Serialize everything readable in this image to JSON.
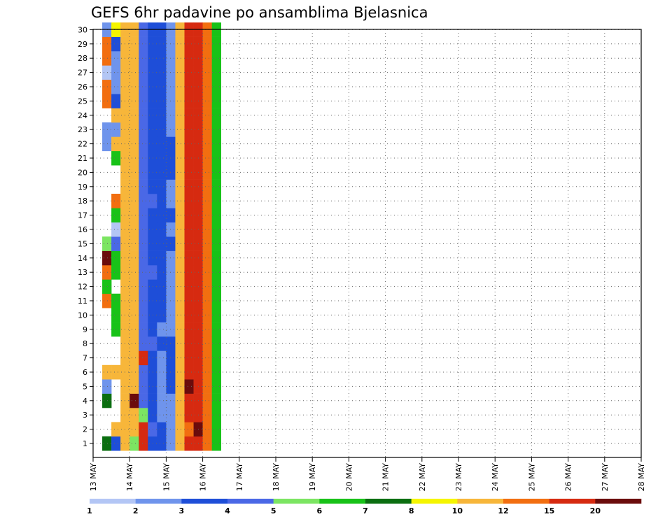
{
  "chart_data": {
    "type": "heatmap",
    "title": "GEFS 6hr padavine po ansamblima Bjelasnica",
    "xlabel": "",
    "ylabel": "",
    "x_tick_labels": [
      "13 MAY",
      "14 MAY",
      "15 MAY",
      "16 MAY",
      "17 MAY",
      "18 MAY",
      "19 MAY",
      "20 MAY",
      "21 MAY",
      "22 MAY",
      "23 MAY",
      "24 MAY",
      "25 MAY",
      "26 MAY",
      "27 MAY",
      "28 MAY"
    ],
    "y_tick_labels": [
      "1",
      "2",
      "3",
      "4",
      "5",
      "6",
      "7",
      "8",
      "9",
      "10",
      "11",
      "12",
      "13",
      "14",
      "15",
      "16",
      "17",
      "18",
      "19",
      "20",
      "21",
      "22",
      "23",
      "24",
      "25",
      "26",
      "27",
      "28",
      "29",
      "30"
    ],
    "steps_per_day": 4,
    "members": 30,
    "grid": true,
    "legend_placement": "bottom",
    "legend": {
      "labels": [
        "1",
        "2",
        "3",
        "4",
        "5",
        "6",
        "7",
        "8",
        "10",
        "12",
        "15",
        "20"
      ],
      "colors": [
        "#b3c6f5",
        "#6f94ec",
        "#1e4ed8",
        "#4a68e6",
        "#7ce562",
        "#18c218",
        "#0b6e10",
        "#f5f500",
        "#f7b63a",
        "#f26e10",
        "#d62a10",
        "#6b0c0c"
      ]
    },
    "cells": [
      [
        1,
        1,
        7
      ],
      [
        1,
        4,
        7
      ],
      [
        1,
        5,
        2
      ],
      [
        1,
        6,
        9
      ],
      [
        1,
        11,
        10
      ],
      [
        1,
        12,
        6
      ],
      [
        1,
        13,
        10
      ],
      [
        1,
        14,
        12
      ],
      [
        1,
        15,
        5
      ],
      [
        1,
        22,
        2
      ],
      [
        1,
        23,
        2
      ],
      [
        1,
        25,
        10
      ],
      [
        1,
        26,
        10
      ],
      [
        1,
        27,
        1
      ],
      [
        1,
        28,
        10
      ],
      [
        1,
        29,
        10
      ],
      [
        1,
        30,
        2
      ],
      [
        2,
        1,
        3
      ],
      [
        2,
        2,
        9
      ],
      [
        2,
        6,
        9
      ],
      [
        2,
        9,
        6
      ],
      [
        2,
        10,
        6
      ],
      [
        2,
        11,
        6
      ],
      [
        2,
        13,
        6
      ],
      [
        2,
        14,
        6
      ],
      [
        2,
        15,
        4
      ],
      [
        2,
        16,
        1
      ],
      [
        2,
        17,
        6
      ],
      [
        2,
        18,
        10
      ],
      [
        2,
        21,
        6
      ],
      [
        2,
        22,
        9
      ],
      [
        2,
        23,
        2
      ],
      [
        2,
        24,
        9
      ],
      [
        2,
        25,
        3
      ],
      [
        2,
        26,
        2
      ],
      [
        2,
        27,
        2
      ],
      [
        2,
        28,
        2
      ],
      [
        2,
        29,
        3
      ],
      [
        2,
        30,
        8
      ],
      [
        3,
        1,
        9
      ],
      [
        3,
        2,
        9
      ],
      [
        3,
        3,
        9
      ],
      [
        3,
        4,
        9
      ],
      [
        3,
        5,
        9
      ],
      [
        3,
        6,
        9
      ],
      [
        3,
        7,
        9
      ],
      [
        3,
        8,
        9
      ],
      [
        3,
        9,
        9
      ],
      [
        3,
        10,
        9
      ],
      [
        3,
        11,
        9
      ],
      [
        3,
        12,
        9
      ],
      [
        3,
        13,
        9
      ],
      [
        3,
        14,
        9
      ],
      [
        3,
        15,
        9
      ],
      [
        3,
        16,
        9
      ],
      [
        3,
        17,
        9
      ],
      [
        3,
        18,
        9
      ],
      [
        3,
        19,
        9
      ],
      [
        3,
        20,
        9
      ],
      [
        3,
        21,
        9
      ],
      [
        3,
        22,
        9
      ],
      [
        3,
        23,
        9
      ],
      [
        3,
        24,
        9
      ],
      [
        3,
        25,
        9
      ],
      [
        3,
        26,
        9
      ],
      [
        3,
        27,
        9
      ],
      [
        3,
        28,
        9
      ],
      [
        3,
        29,
        9
      ],
      [
        3,
        30,
        9
      ],
      [
        4,
        1,
        5
      ],
      [
        4,
        2,
        9
      ],
      [
        4,
        3,
        9
      ],
      [
        4,
        4,
        12
      ],
      [
        4,
        5,
        9
      ],
      [
        4,
        6,
        9
      ],
      [
        4,
        7,
        9
      ],
      [
        4,
        8,
        9
      ],
      [
        4,
        9,
        9
      ],
      [
        4,
        10,
        9
      ],
      [
        4,
        11,
        9
      ],
      [
        4,
        12,
        9
      ],
      [
        4,
        13,
        9
      ],
      [
        4,
        14,
        9
      ],
      [
        4,
        15,
        9
      ],
      [
        4,
        16,
        9
      ],
      [
        4,
        17,
        9
      ],
      [
        4,
        18,
        9
      ],
      [
        4,
        19,
        9
      ],
      [
        4,
        20,
        9
      ],
      [
        4,
        21,
        9
      ],
      [
        4,
        22,
        9
      ],
      [
        4,
        23,
        9
      ],
      [
        4,
        24,
        9
      ],
      [
        4,
        25,
        9
      ],
      [
        4,
        26,
        9
      ],
      [
        4,
        27,
        9
      ],
      [
        4,
        28,
        9
      ],
      [
        4,
        29,
        9
      ],
      [
        4,
        30,
        9
      ],
      [
        5,
        1,
        11
      ],
      [
        5,
        2,
        11
      ],
      [
        5,
        3,
        5
      ],
      [
        5,
        4,
        4
      ],
      [
        5,
        5,
        4
      ],
      [
        5,
        6,
        4
      ],
      [
        5,
        7,
        11
      ],
      [
        5,
        8,
        4
      ],
      [
        5,
        9,
        4
      ],
      [
        5,
        10,
        4
      ],
      [
        5,
        11,
        4
      ],
      [
        5,
        12,
        4
      ],
      [
        5,
        13,
        4
      ],
      [
        5,
        14,
        4
      ],
      [
        5,
        15,
        4
      ],
      [
        5,
        16,
        4
      ],
      [
        5,
        17,
        4
      ],
      [
        5,
        18,
        4
      ],
      [
        5,
        19,
        4
      ],
      [
        5,
        20,
        4
      ],
      [
        5,
        21,
        4
      ],
      [
        5,
        22,
        4
      ],
      [
        5,
        23,
        4
      ],
      [
        5,
        24,
        4
      ],
      [
        5,
        25,
        4
      ],
      [
        5,
        26,
        4
      ],
      [
        5,
        27,
        4
      ],
      [
        5,
        28,
        4
      ],
      [
        5,
        29,
        4
      ],
      [
        5,
        30,
        4
      ],
      [
        6,
        1,
        3
      ],
      [
        6,
        2,
        4
      ],
      [
        6,
        3,
        3
      ],
      [
        6,
        4,
        3
      ],
      [
        6,
        5,
        3
      ],
      [
        6,
        6,
        3
      ],
      [
        6,
        7,
        3
      ],
      [
        6,
        8,
        4
      ],
      [
        6,
        9,
        3
      ],
      [
        6,
        10,
        3
      ],
      [
        6,
        11,
        3
      ],
      [
        6,
        12,
        3
      ],
      [
        6,
        13,
        4
      ],
      [
        6,
        14,
        3
      ],
      [
        6,
        15,
        3
      ],
      [
        6,
        16,
        3
      ],
      [
        6,
        17,
        3
      ],
      [
        6,
        18,
        4
      ],
      [
        6,
        19,
        3
      ],
      [
        6,
        20,
        3
      ],
      [
        6,
        21,
        3
      ],
      [
        6,
        22,
        3
      ],
      [
        6,
        23,
        3
      ],
      [
        6,
        24,
        3
      ],
      [
        6,
        25,
        3
      ],
      [
        6,
        26,
        3
      ],
      [
        6,
        27,
        3
      ],
      [
        6,
        28,
        3
      ],
      [
        6,
        29,
        3
      ],
      [
        6,
        30,
        3
      ],
      [
        7,
        1,
        3
      ],
      [
        7,
        2,
        3
      ],
      [
        7,
        3,
        2
      ],
      [
        7,
        4,
        2
      ],
      [
        7,
        5,
        2
      ],
      [
        7,
        6,
        2
      ],
      [
        7,
        7,
        2
      ],
      [
        7,
        8,
        3
      ],
      [
        7,
        9,
        2
      ],
      [
        7,
        10,
        3
      ],
      [
        7,
        11,
        3
      ],
      [
        7,
        12,
        3
      ],
      [
        7,
        13,
        3
      ],
      [
        7,
        14,
        3
      ],
      [
        7,
        15,
        3
      ],
      [
        7,
        16,
        3
      ],
      [
        7,
        17,
        3
      ],
      [
        7,
        18,
        3
      ],
      [
        7,
        19,
        3
      ],
      [
        7,
        20,
        3
      ],
      [
        7,
        21,
        3
      ],
      [
        7,
        22,
        3
      ],
      [
        7,
        23,
        3
      ],
      [
        7,
        24,
        3
      ],
      [
        7,
        25,
        3
      ],
      [
        7,
        26,
        3
      ],
      [
        7,
        27,
        3
      ],
      [
        7,
        28,
        3
      ],
      [
        7,
        29,
        3
      ],
      [
        7,
        30,
        3
      ],
      [
        8,
        1,
        2
      ],
      [
        8,
        2,
        2
      ],
      [
        8,
        3,
        2
      ],
      [
        8,
        4,
        2
      ],
      [
        8,
        5,
        3
      ],
      [
        8,
        6,
        3
      ],
      [
        8,
        7,
        3
      ],
      [
        8,
        8,
        3
      ],
      [
        8,
        9,
        2
      ],
      [
        8,
        10,
        2
      ],
      [
        8,
        11,
        2
      ],
      [
        8,
        12,
        2
      ],
      [
        8,
        13,
        2
      ],
      [
        8,
        14,
        2
      ],
      [
        8,
        15,
        3
      ],
      [
        8,
        16,
        2
      ],
      [
        8,
        17,
        3
      ],
      [
        8,
        18,
        2
      ],
      [
        8,
        19,
        2
      ],
      [
        8,
        20,
        3
      ],
      [
        8,
        21,
        3
      ],
      [
        8,
        22,
        3
      ],
      [
        8,
        23,
        2
      ],
      [
        8,
        24,
        2
      ],
      [
        8,
        25,
        2
      ],
      [
        8,
        26,
        2
      ],
      [
        8,
        27,
        2
      ],
      [
        8,
        28,
        2
      ],
      [
        8,
        29,
        2
      ],
      [
        8,
        30,
        2
      ],
      [
        9,
        1,
        9
      ],
      [
        9,
        2,
        9
      ],
      [
        9,
        3,
        9
      ],
      [
        9,
        4,
        9
      ],
      [
        9,
        5,
        9
      ],
      [
        9,
        6,
        9
      ],
      [
        9,
        7,
        9
      ],
      [
        9,
        8,
        9
      ],
      [
        9,
        9,
        9
      ],
      [
        9,
        10,
        9
      ],
      [
        9,
        11,
        9
      ],
      [
        9,
        12,
        9
      ],
      [
        9,
        13,
        9
      ],
      [
        9,
        14,
        9
      ],
      [
        9,
        15,
        9
      ],
      [
        9,
        16,
        9
      ],
      [
        9,
        17,
        9
      ],
      [
        9,
        18,
        9
      ],
      [
        9,
        19,
        9
      ],
      [
        9,
        20,
        9
      ],
      [
        9,
        21,
        9
      ],
      [
        9,
        22,
        9
      ],
      [
        9,
        23,
        9
      ],
      [
        9,
        24,
        9
      ],
      [
        9,
        25,
        9
      ],
      [
        9,
        26,
        9
      ],
      [
        9,
        27,
        9
      ],
      [
        9,
        28,
        9
      ],
      [
        9,
        29,
        9
      ],
      [
        9,
        30,
        9
      ],
      [
        10,
        1,
        11
      ],
      [
        10,
        2,
        10
      ],
      [
        10,
        3,
        11
      ],
      [
        10,
        4,
        11
      ],
      [
        10,
        5,
        12
      ],
      [
        10,
        6,
        11
      ],
      [
        10,
        7,
        11
      ],
      [
        10,
        8,
        11
      ],
      [
        10,
        9,
        11
      ],
      [
        10,
        10,
        11
      ],
      [
        10,
        11,
        11
      ],
      [
        10,
        12,
        11
      ],
      [
        10,
        13,
        11
      ],
      [
        10,
        14,
        11
      ],
      [
        10,
        15,
        11
      ],
      [
        10,
        16,
        11
      ],
      [
        10,
        17,
        11
      ],
      [
        10,
        18,
        11
      ],
      [
        10,
        19,
        11
      ],
      [
        10,
        20,
        11
      ],
      [
        10,
        21,
        11
      ],
      [
        10,
        22,
        11
      ],
      [
        10,
        23,
        11
      ],
      [
        10,
        24,
        11
      ],
      [
        10,
        25,
        11
      ],
      [
        10,
        26,
        11
      ],
      [
        10,
        27,
        11
      ],
      [
        10,
        28,
        11
      ],
      [
        10,
        29,
        11
      ],
      [
        10,
        30,
        11
      ],
      [
        11,
        1,
        11
      ],
      [
        11,
        2,
        12
      ],
      [
        11,
        3,
        11
      ],
      [
        11,
        4,
        11
      ],
      [
        11,
        5,
        11
      ],
      [
        11,
        6,
        11
      ],
      [
        11,
        7,
        11
      ],
      [
        11,
        8,
        11
      ],
      [
        11,
        9,
        11
      ],
      [
        11,
        10,
        11
      ],
      [
        11,
        11,
        11
      ],
      [
        11,
        12,
        11
      ],
      [
        11,
        13,
        11
      ],
      [
        11,
        14,
        11
      ],
      [
        11,
        15,
        11
      ],
      [
        11,
        16,
        11
      ],
      [
        11,
        17,
        11
      ],
      [
        11,
        18,
        11
      ],
      [
        11,
        19,
        11
      ],
      [
        11,
        20,
        11
      ],
      [
        11,
        21,
        11
      ],
      [
        11,
        22,
        11
      ],
      [
        11,
        23,
        11
      ],
      [
        11,
        24,
        11
      ],
      [
        11,
        25,
        11
      ],
      [
        11,
        26,
        11
      ],
      [
        11,
        27,
        11
      ],
      [
        11,
        28,
        11
      ],
      [
        11,
        29,
        11
      ],
      [
        11,
        30,
        11
      ],
      [
        12,
        1,
        10
      ],
      [
        12,
        2,
        10
      ],
      [
        12,
        3,
        10
      ],
      [
        12,
        4,
        10
      ],
      [
        12,
        5,
        10
      ],
      [
        12,
        6,
        10
      ],
      [
        12,
        7,
        10
      ],
      [
        12,
        8,
        10
      ],
      [
        12,
        9,
        10
      ],
      [
        12,
        10,
        10
      ],
      [
        12,
        11,
        10
      ],
      [
        12,
        12,
        10
      ],
      [
        12,
        13,
        10
      ],
      [
        12,
        14,
        10
      ],
      [
        12,
        15,
        10
      ],
      [
        12,
        16,
        10
      ],
      [
        12,
        17,
        10
      ],
      [
        12,
        18,
        10
      ],
      [
        12,
        19,
        10
      ],
      [
        12,
        20,
        10
      ],
      [
        12,
        21,
        10
      ],
      [
        12,
        22,
        10
      ],
      [
        12,
        23,
        10
      ],
      [
        12,
        24,
        10
      ],
      [
        12,
        25,
        10
      ],
      [
        12,
        26,
        10
      ],
      [
        12,
        27,
        10
      ],
      [
        12,
        28,
        10
      ],
      [
        12,
        29,
        10
      ],
      [
        12,
        30,
        10
      ],
      [
        13,
        1,
        6
      ],
      [
        13,
        2,
        6
      ],
      [
        13,
        3,
        6
      ],
      [
        13,
        4,
        6
      ],
      [
        13,
        5,
        6
      ],
      [
        13,
        6,
        6
      ],
      [
        13,
        7,
        6
      ],
      [
        13,
        8,
        6
      ],
      [
        13,
        9,
        6
      ],
      [
        13,
        10,
        6
      ],
      [
        13,
        11,
        6
      ],
      [
        13,
        12,
        6
      ],
      [
        13,
        13,
        6
      ],
      [
        13,
        14,
        6
      ],
      [
        13,
        15,
        6
      ],
      [
        13,
        16,
        6
      ],
      [
        13,
        17,
        6
      ],
      [
        13,
        18,
        6
      ],
      [
        13,
        19,
        6
      ],
      [
        13,
        20,
        6
      ],
      [
        13,
        21,
        6
      ],
      [
        13,
        22,
        6
      ],
      [
        13,
        23,
        6
      ],
      [
        13,
        24,
        6
      ],
      [
        13,
        25,
        6
      ],
      [
        13,
        26,
        6
      ],
      [
        13,
        27,
        6
      ],
      [
        13,
        28,
        6
      ],
      [
        13,
        29,
        6
      ],
      [
        13,
        30,
        6
      ]
    ]
  }
}
